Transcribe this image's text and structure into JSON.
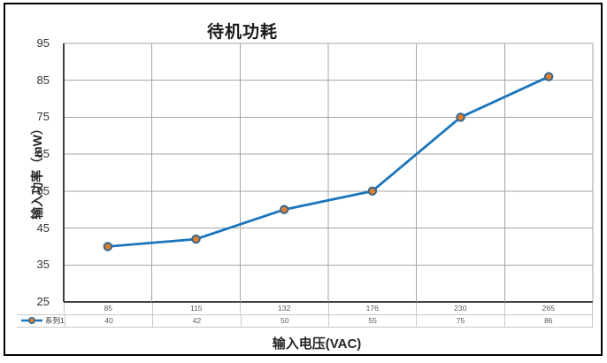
{
  "chart_data": {
    "type": "line",
    "title": "待机功耗",
    "xlabel": "输入电压(VAC)",
    "ylabel": "输入功率（mW）",
    "categories": [
      "85",
      "115",
      "132",
      "176",
      "230",
      "265"
    ],
    "series": [
      {
        "name": "系列1",
        "values": [
          40,
          42,
          50,
          55,
          75,
          86
        ]
      }
    ],
    "ylim": [
      25,
      95
    ],
    "yticks": [
      95,
      85,
      75,
      65,
      55,
      45,
      35,
      25
    ],
    "ytick_step": 10,
    "grid": true,
    "data_table_shown": true,
    "legend_position": "data-table-left",
    "colors": {
      "line": "#1B75BC",
      "marker_fill": "#DE7E2E",
      "marker_stroke": "#38678C",
      "gridline": "#A6A6A6",
      "axis": "#404040",
      "table_border": "#C9C9C9",
      "frame_border": "#000000",
      "title_text": "#1A1A1A",
      "tick_text": "#333333",
      "table_text": "#595959"
    }
  }
}
